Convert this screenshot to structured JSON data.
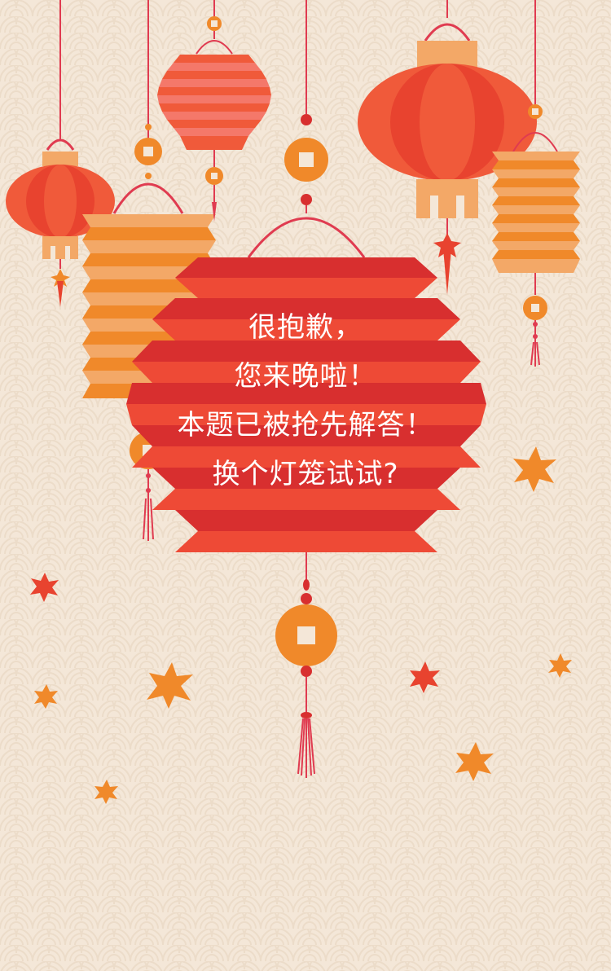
{
  "message": {
    "line1": "很抱歉，",
    "line2": "您来晚啦！",
    "line3": "本题已被抢先解答！",
    "line4": "换个灯笼试试?"
  },
  "colors": {
    "background": "#f4e7d8",
    "pattern": "#ecdcc9",
    "main_lantern_dark": "#d82f2f",
    "main_lantern_light": "#ee4a36",
    "orange": "#f0892a",
    "light_orange": "#f3a867",
    "red_orange": "#f05a3a",
    "string": "#e03b50",
    "message_text": "#ffffff"
  },
  "icons": {
    "scale_pattern": "wave-scale-pattern",
    "coin": "square-hole-coin-icon",
    "tassel": "tassel-icon",
    "star": "star-burst-icon"
  }
}
